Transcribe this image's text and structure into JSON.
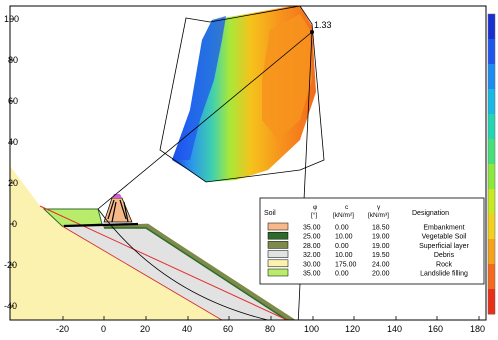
{
  "axes": {
    "x_ticks": [
      "-20",
      "0",
      "20",
      "40",
      "60",
      "80",
      "100",
      "120",
      "140",
      "160",
      "180"
    ],
    "y_ticks": [
      "100",
      "80",
      "60",
      "40",
      "20",
      "0",
      "-20",
      "-40"
    ]
  },
  "factor_of_safety": "1.33",
  "legend": {
    "headers": {
      "soil": "Soil",
      "phi": "φ",
      "phi_unit": "[°]",
      "c": "c",
      "c_unit": "[kN/m²]",
      "gamma": "γ",
      "gamma_unit": "[kN/m³]",
      "designation": "Designation"
    },
    "rows": [
      {
        "color": "#f7b98a",
        "phi": "35.00",
        "c": "0.00",
        "gamma": "18.50",
        "name": "Embankment"
      },
      {
        "color": "#2d6b2d",
        "phi": "25.00",
        "c": "10.00",
        "gamma": "19.00",
        "name": "Vegetable Soil"
      },
      {
        "color": "#7d8a4a",
        "phi": "28.00",
        "c": "0.00",
        "gamma": "19.00",
        "name": "Superficial layer"
      },
      {
        "color": "#e2e2e2",
        "phi": "32.00",
        "c": "10.00",
        "gamma": "19.50",
        "name": "Debris"
      },
      {
        "color": "#fbf2b0",
        "phi": "30.00",
        "c": "175.00",
        "gamma": "24.00",
        "name": "Rock"
      },
      {
        "color": "#b8ec6a",
        "phi": "35.00",
        "c": "0.00",
        "gamma": "20.00",
        "name": "Landslide filling"
      }
    ]
  },
  "color_scale": [
    "#1a2fd0",
    "#1f55ee",
    "#1c8bf2",
    "#19b8e6",
    "#22d6b3",
    "#46e07a",
    "#8ce83c",
    "#c8e820",
    "#f2d11c",
    "#f7a21d",
    "#f56a1c",
    "#ea2e18"
  ],
  "colors": {
    "plot_border": "#000000",
    "rock": "#fbf2b0",
    "slip_surface": "#e03030"
  }
}
